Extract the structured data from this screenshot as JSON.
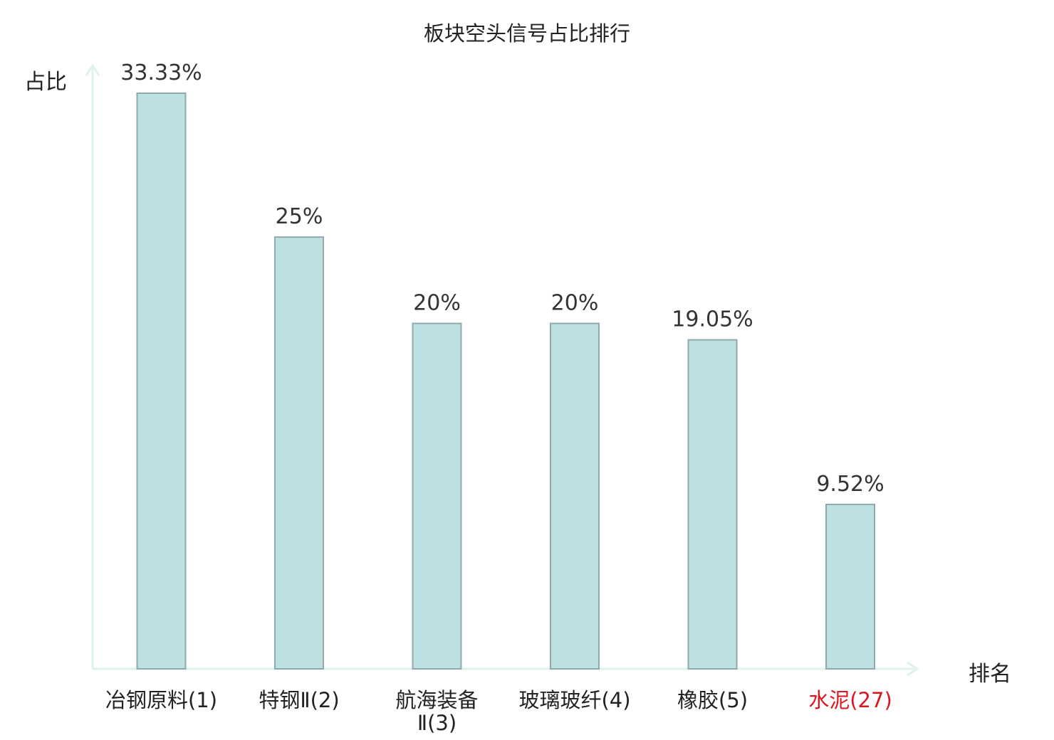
{
  "chart_data": {
    "type": "bar",
    "title": "板块空头信号占比排行",
    "ylabel": "占比",
    "xlabel": "排名",
    "ylim": [
      0,
      33.33
    ],
    "grid": false,
    "legend": "none",
    "categories": [
      {
        "lines": [
          "冶钢原料(1)"
        ],
        "name": "冶钢原料",
        "rank": "(1)",
        "highlight": false
      },
      {
        "lines": [
          "特钢Ⅱ(2)"
        ],
        "name": "特钢Ⅱ",
        "rank": "(2)",
        "highlight": false
      },
      {
        "lines": [
          "航海装备",
          "Ⅱ(3)"
        ],
        "name": "航海装备Ⅱ",
        "rank": "(3)",
        "highlight": false
      },
      {
        "lines": [
          "玻璃玻纤(4)"
        ],
        "name": "玻璃玻纤",
        "rank": "(4)",
        "highlight": false
      },
      {
        "lines": [
          "橡胶(5)"
        ],
        "name": "橡胶",
        "rank": "(5)",
        "highlight": false
      },
      {
        "lines": [
          "水泥(27)"
        ],
        "name": "水泥",
        "rank": "(27)",
        "highlight": true
      }
    ],
    "values": [
      33.33,
      25,
      20,
      20,
      19.05,
      9.52
    ],
    "value_labels": [
      "33.33%",
      "25%",
      "20%",
      "20%",
      "19.05%",
      "9.52%"
    ],
    "colors": {
      "bar_fill": "#bde0e2",
      "bar_stroke": "#8faaab",
      "axis": "#e0f2ef",
      "label_text": "#333333",
      "highlight": "#e0141e"
    }
  }
}
